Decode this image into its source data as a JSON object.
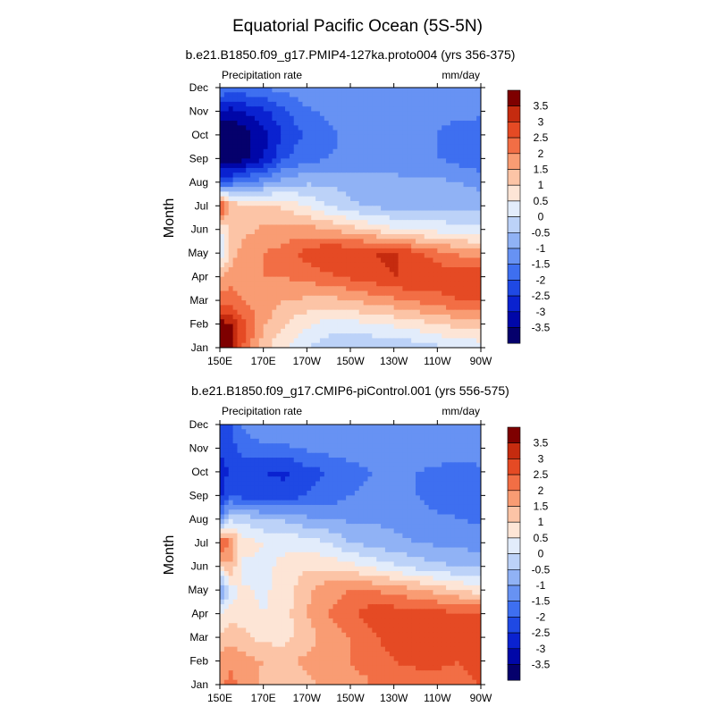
{
  "figure": {
    "title": "Equatorial Pacific Ocean (5S-5N)"
  },
  "chart_data": [
    {
      "type": "heatmap",
      "title": "b.e21.B1850.f09_g17.PMIP4-127ka.proto004 (yrs 356-375)",
      "left_label": "Precipitation rate",
      "right_label": "mm/day",
      "ylabel": "Month",
      "x_ticks": [
        "150E",
        "170E",
        "170W",
        "150W",
        "130W",
        "110W",
        "90W"
      ],
      "x_tick_lon": [
        150,
        170,
        190,
        210,
        230,
        250,
        270
      ],
      "xlim": [
        150,
        270
      ],
      "y_ticks": [
        "Jan",
        "Feb",
        "Mar",
        "Apr",
        "May",
        "Jun",
        "Jul",
        "Aug",
        "Sep",
        "Oct",
        "Nov",
        "Dec"
      ],
      "ylim": [
        1,
        12
      ],
      "lon_grid": [
        150,
        155,
        160,
        170,
        180,
        190,
        200,
        210,
        220,
        230,
        240,
        250,
        260,
        270
      ],
      "values": [
        [
          4.0,
          3.8,
          2.6,
          1.2,
          0.5,
          0.0,
          -0.3,
          -0.5,
          -0.5,
          -0.4,
          -0.3,
          -0.1,
          0.1,
          0.2
        ],
        [
          3.8,
          3.5,
          2.8,
          1.6,
          1.0,
          0.6,
          0.3,
          0.3,
          0.5,
          0.6,
          0.8,
          1.0,
          1.2,
          1.3
        ],
        [
          2.2,
          2.2,
          2.0,
          1.8,
          1.5,
          1.4,
          1.3,
          1.5,
          1.7,
          1.9,
          2.1,
          2.3,
          2.5,
          2.6
        ],
        [
          1.5,
          1.8,
          1.9,
          2.0,
          2.0,
          2.2,
          2.4,
          2.6,
          2.8,
          3.0,
          3.0,
          2.9,
          2.8,
          2.9
        ],
        [
          -0.2,
          1.2,
          1.7,
          2.0,
          2.2,
          2.7,
          3.0,
          3.0,
          3.0,
          3.1,
          2.6,
          2.2,
          1.9,
          1.7
        ],
        [
          0.5,
          1.0,
          1.3,
          1.6,
          1.7,
          1.7,
          1.5,
          1.2,
          0.9,
          0.6,
          0.4,
          0.3,
          0.2,
          0.1
        ],
        [
          3.0,
          1.4,
          1.2,
          1.1,
          0.9,
          0.5,
          0.0,
          -0.4,
          -0.6,
          -0.7,
          -0.7,
          -0.6,
          -0.6,
          -0.7
        ],
        [
          -2.0,
          -1.9,
          -1.6,
          -1.2,
          -0.8,
          -0.6,
          -0.6,
          -0.7,
          -0.8,
          -0.8,
          -0.9,
          -0.9,
          -1.0,
          -1.2
        ],
        [
          -4.0,
          -4.0,
          -3.7,
          -3.0,
          -2.0,
          -1.7,
          -1.5,
          -1.4,
          -1.4,
          -1.4,
          -1.5,
          -1.5,
          -1.7,
          -1.9
        ],
        [
          -4.0,
          -4.0,
          -3.8,
          -3.2,
          -2.4,
          -1.9,
          -1.6,
          -1.4,
          -1.3,
          -1.3,
          -1.4,
          -1.5,
          -1.8,
          -2.0
        ],
        [
          -3.0,
          -3.2,
          -3.0,
          -2.6,
          -2.1,
          -1.6,
          -1.4,
          -1.3,
          -1.3,
          -1.3,
          -1.3,
          -1.3,
          -1.3,
          -1.3
        ],
        [
          -1.5,
          -1.6,
          -1.6,
          -1.5,
          -1.3,
          -1.1,
          -1.0,
          -1.0,
          -1.0,
          -1.0,
          -1.0,
          -1.0,
          -1.0,
          -1.0
        ]
      ]
    },
    {
      "type": "heatmap",
      "title": "b.e21.B1850.f09_g17.CMIP6-piControl.001 (yrs 556-575)",
      "left_label": "Precipitation rate",
      "right_label": "mm/day",
      "ylabel": "Month",
      "x_ticks": [
        "150E",
        "170E",
        "170W",
        "150W",
        "130W",
        "110W",
        "90W"
      ],
      "x_tick_lon": [
        150,
        170,
        190,
        210,
        230,
        250,
        270
      ],
      "xlim": [
        150,
        270
      ],
      "y_ticks": [
        "Jan",
        "Feb",
        "Mar",
        "Apr",
        "May",
        "Jun",
        "Jul",
        "Aug",
        "Sep",
        "Oct",
        "Nov",
        "Dec"
      ],
      "ylim": [
        1,
        12
      ],
      "lon_grid": [
        150,
        155,
        160,
        170,
        180,
        190,
        200,
        210,
        220,
        230,
        240,
        250,
        260,
        270
      ],
      "values": [
        [
          1.8,
          2.2,
          1.8,
          1.4,
          1.2,
          1.4,
          1.6,
          1.8,
          2.0,
          2.2,
          2.3,
          2.3,
          2.4,
          2.5
        ],
        [
          1.8,
          1.9,
          1.7,
          1.5,
          1.4,
          1.6,
          1.8,
          2.0,
          2.2,
          2.5,
          2.6,
          2.6,
          2.5,
          2.6
        ],
        [
          1.0,
          1.3,
          1.2,
          0.8,
          0.8,
          1.3,
          1.7,
          2.0,
          2.4,
          2.8,
          2.9,
          3.0,
          2.9,
          2.8
        ],
        [
          0.6,
          0.8,
          0.7,
          0.5,
          0.8,
          1.5,
          2.0,
          2.4,
          2.8,
          2.8,
          2.7,
          2.7,
          2.6,
          2.6
        ],
        [
          -1.5,
          0.2,
          0.6,
          0.4,
          0.7,
          1.4,
          1.8,
          2.0,
          2.0,
          1.8,
          1.6,
          1.3,
          1.0,
          0.7
        ],
        [
          1.0,
          1.4,
          0.3,
          0.4,
          0.6,
          0.9,
          0.9,
          0.7,
          0.4,
          0.1,
          -0.2,
          -0.4,
          -0.5,
          -0.6
        ],
        [
          2.8,
          2.0,
          0.8,
          0.5,
          0.4,
          0.3,
          0.0,
          -0.5,
          -0.7,
          -0.9,
          -1.0,
          -1.1,
          -1.2,
          -1.2
        ],
        [
          -1.6,
          -0.2,
          -0.2,
          -0.5,
          -0.6,
          -0.9,
          -1.0,
          -1.1,
          -1.1,
          -1.1,
          -1.3,
          -1.4,
          -1.5,
          -1.6
        ],
        [
          -2.6,
          -2.0,
          -2.2,
          -2.4,
          -2.3,
          -2.0,
          -1.8,
          -1.5,
          -1.4,
          -1.4,
          -1.5,
          -1.7,
          -1.8,
          -1.8
        ],
        [
          -2.8,
          -2.4,
          -2.4,
          -2.5,
          -2.6,
          -2.2,
          -2.0,
          -1.7,
          -1.5,
          -1.5,
          -1.5,
          -1.6,
          -1.7,
          -1.6
        ],
        [
          -2.4,
          -2.2,
          -1.8,
          -1.6,
          -1.6,
          -1.4,
          -1.3,
          -1.2,
          -1.2,
          -1.2,
          -1.2,
          -1.2,
          -1.3,
          -1.2
        ],
        [
          -2.2,
          -2.0,
          -1.5,
          -1.1,
          -1.0,
          -1.0,
          -1.0,
          -1.0,
          -1.0,
          -1.0,
          -1.0,
          -1.0,
          -1.0,
          -1.0
        ]
      ]
    }
  ],
  "colorbar": {
    "labels": [
      "3.5",
      "3",
      "2.5",
      "2",
      "1.5",
      "1",
      "0.5",
      "0",
      "-0.5",
      "-1",
      "-1.5",
      "-2",
      "-2.5",
      "-3",
      "-3.5"
    ],
    "levels": [
      -3.5,
      -3,
      -2.5,
      -2,
      -1.5,
      -1,
      -0.5,
      0,
      0.5,
      1,
      1.5,
      2,
      2.5,
      3,
      3.5
    ],
    "colors": [
      "#05006c",
      "#0007a8",
      "#0a22d0",
      "#1f49e4",
      "#3e6ff0",
      "#6792f3",
      "#90b2f5",
      "#bcd2f8",
      "#e2ecfb",
      "#fde5d6",
      "#fcc4a6",
      "#f99c73",
      "#f26e45",
      "#e54a24",
      "#c52b0f",
      "#7e0000"
    ]
  }
}
